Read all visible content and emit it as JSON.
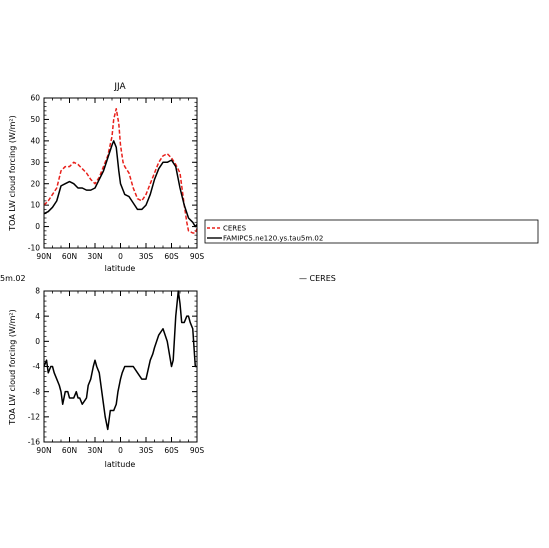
{
  "figure": {
    "cut_label": "5m.02",
    "stray_legend_label": "— CERES"
  },
  "chart_data": [
    {
      "type": "line",
      "title": "JJA",
      "xlabel": "latitude",
      "ylabel": "TOA LW cloud forcing (W/m²)",
      "x_ticks": [
        "90N",
        "60N",
        "30N",
        "0",
        "30S",
        "60S",
        "90S"
      ],
      "y_ticks": [
        "-10",
        "0",
        "10",
        "20",
        "30",
        "40",
        "50",
        "60"
      ],
      "xlim": [
        90,
        -90
      ],
      "ylim": [
        -10,
        60
      ],
      "grid": false,
      "legend_position": "right, outside",
      "series": [
        {
          "name": "CERES",
          "color": "#e8201b",
          "dash": "dashed",
          "x": [
            90,
            85,
            80,
            75,
            70,
            65,
            60,
            55,
            50,
            45,
            40,
            35,
            30,
            25,
            20,
            15,
            10,
            8,
            5,
            2,
            0,
            -3,
            -5,
            -10,
            -15,
            -20,
            -25,
            -30,
            -35,
            -40,
            -45,
            -50,
            -55,
            -60,
            -65,
            -70,
            -75,
            -78,
            -80,
            -85,
            -88,
            -90
          ],
          "y": [
            10,
            12,
            15,
            18,
            26,
            28,
            28,
            30,
            29,
            27,
            25,
            22,
            20,
            23,
            28,
            33,
            42,
            50,
            55,
            48,
            38,
            30,
            28,
            25,
            18,
            13,
            12,
            15,
            20,
            25,
            30,
            33,
            34,
            32,
            29,
            25,
            10,
            2,
            -2,
            -3,
            -3,
            -1
          ]
        },
        {
          "name": "FAMIPC5.ne120.ys.tau5m.02",
          "color": "#000000",
          "dash": "solid",
          "x": [
            90,
            85,
            80,
            75,
            70,
            65,
            60,
            55,
            50,
            45,
            40,
            35,
            30,
            25,
            20,
            15,
            10,
            8,
            5,
            2,
            0,
            -3,
            -5,
            -10,
            -15,
            -20,
            -25,
            -30,
            -35,
            -40,
            -45,
            -50,
            -55,
            -60,
            -65,
            -70,
            -75,
            -80,
            -85,
            -88,
            -90
          ],
          "y": [
            6,
            7,
            9,
            12,
            19,
            20,
            21,
            20,
            18,
            18,
            17,
            17,
            18,
            22,
            26,
            32,
            38,
            40,
            37,
            26,
            20,
            17,
            15,
            14,
            11,
            8,
            8,
            10,
            15,
            22,
            27,
            30,
            30,
            31,
            28,
            18,
            10,
            4,
            2,
            0,
            1
          ]
        }
      ]
    },
    {
      "type": "line",
      "title": "",
      "xlabel": "latitude",
      "ylabel": "TOA LW cloud forcing (W/m²)",
      "x_ticks": [
        "90N",
        "60N",
        "30N",
        "0",
        "30S",
        "60S",
        "90S"
      ],
      "y_ticks": [
        "-16",
        "-12",
        "-8",
        "-4",
        "0",
        "4",
        "8"
      ],
      "xlim": [
        90,
        -90
      ],
      "ylim": [
        -16,
        8
      ],
      "grid": false,
      "series": [
        {
          "color": "#000000",
          "dash": "solid",
          "x": [
            90,
            87,
            85,
            82,
            80,
            78,
            75,
            72,
            70,
            68,
            65,
            62,
            60,
            55,
            52,
            50,
            48,
            45,
            40,
            38,
            35,
            32,
            30,
            28,
            25,
            20,
            18,
            15,
            12,
            10,
            8,
            5,
            3,
            0,
            -2,
            -5,
            -8,
            -10,
            -15,
            -20,
            -25,
            -30,
            -35,
            -38,
            -40,
            -45,
            -50,
            -55,
            -60,
            -62,
            -65,
            -68,
            -70,
            -72,
            -75,
            -78,
            -80,
            -82,
            -85,
            -88,
            -90
          ],
          "y": [
            -4,
            -3,
            -5,
            -4,
            -4,
            -5,
            -6,
            -7,
            -8,
            -10,
            -8,
            -8,
            -9,
            -9,
            -8,
            -9,
            -9,
            -10,
            -9,
            -7,
            -6,
            -4,
            -3,
            -4,
            -5,
            -10,
            -12,
            -14,
            -11,
            -11,
            -11,
            -10,
            -8,
            -6,
            -5,
            -4,
            -4,
            -4,
            -4,
            -5,
            -6,
            -6,
            -3,
            -2,
            -1,
            1,
            2,
            0,
            -4,
            -3,
            4,
            8,
            6,
            3,
            3,
            4,
            4,
            3,
            2,
            -4,
            -4
          ]
        }
      ]
    }
  ]
}
